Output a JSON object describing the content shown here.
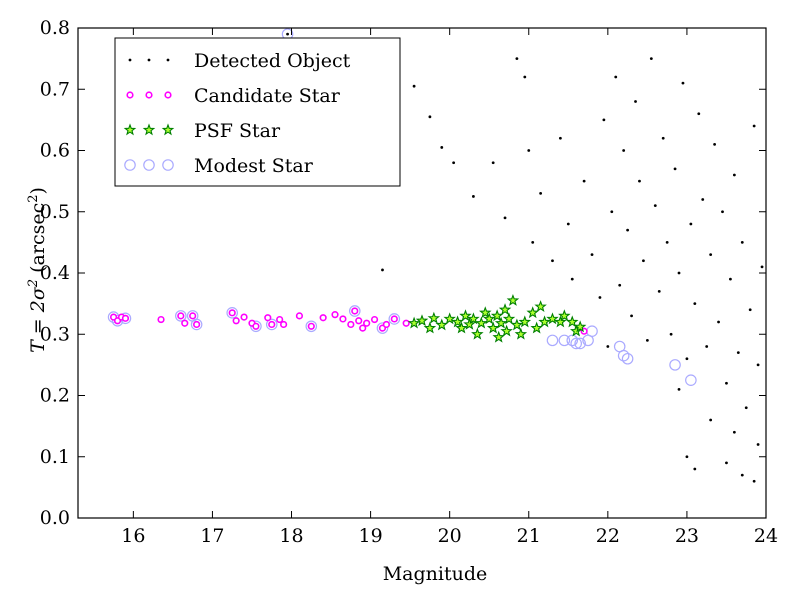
{
  "chart_data": {
    "type": "scatter",
    "xlabel": "Magnitude",
    "ylabel": {
      "pre": "T = 2σ",
      "sup1": "2",
      "mid": " (arcsec",
      "sup2": "2",
      "post": ")"
    },
    "xlim": [
      15.3,
      24
    ],
    "ylim": [
      0.0,
      0.8
    ],
    "xticks": [
      16,
      17,
      18,
      19,
      20,
      21,
      22,
      23,
      24
    ],
    "yticks": [
      0.0,
      0.1,
      0.2,
      0.3,
      0.4,
      0.5,
      0.6,
      0.7,
      0.8
    ],
    "xtick_labels": [
      "16",
      "17",
      "18",
      "19",
      "20",
      "21",
      "22",
      "23",
      "24"
    ],
    "ytick_labels": [
      "0.0",
      "0.1",
      "0.2",
      "0.3",
      "0.4",
      "0.5",
      "0.6",
      "0.7",
      "0.8"
    ],
    "grid": false,
    "legend_position": "top-left",
    "series": [
      {
        "name": "Detected Object",
        "marker": "dot",
        "color": "#000000",
        "points": [
          [
            17.95,
            0.79
          ],
          [
            19.15,
            0.405
          ],
          [
            19.55,
            0.705
          ],
          [
            19.75,
            0.655
          ],
          [
            19.9,
            0.605
          ],
          [
            20.05,
            0.58
          ],
          [
            20.3,
            0.525
          ],
          [
            20.55,
            0.58
          ],
          [
            20.7,
            0.49
          ],
          [
            20.85,
            0.75
          ],
          [
            20.95,
            0.72
          ],
          [
            21.0,
            0.6
          ],
          [
            21.05,
            0.45
          ],
          [
            21.15,
            0.53
          ],
          [
            21.3,
            0.42
          ],
          [
            21.4,
            0.62
          ],
          [
            21.5,
            0.48
          ],
          [
            21.55,
            0.39
          ],
          [
            21.6,
            0.31
          ],
          [
            21.7,
            0.55
          ],
          [
            21.8,
            0.43
          ],
          [
            21.9,
            0.36
          ],
          [
            21.95,
            0.65
          ],
          [
            22.0,
            0.28
          ],
          [
            22.05,
            0.5
          ],
          [
            22.1,
            0.72
          ],
          [
            22.15,
            0.38
          ],
          [
            22.2,
            0.6
          ],
          [
            22.25,
            0.47
          ],
          [
            22.3,
            0.33
          ],
          [
            22.35,
            0.68
          ],
          [
            22.4,
            0.55
          ],
          [
            22.45,
            0.42
          ],
          [
            22.5,
            0.29
          ],
          [
            22.55,
            0.75
          ],
          [
            22.6,
            0.51
          ],
          [
            22.65,
            0.37
          ],
          [
            22.7,
            0.62
          ],
          [
            22.75,
            0.45
          ],
          [
            22.8,
            0.3
          ],
          [
            22.85,
            0.57
          ],
          [
            22.9,
            0.4
          ],
          [
            22.95,
            0.71
          ],
          [
            23.0,
            0.26
          ],
          [
            23.05,
            0.48
          ],
          [
            23.1,
            0.35
          ],
          [
            23.15,
            0.66
          ],
          [
            23.2,
            0.52
          ],
          [
            23.25,
            0.28
          ],
          [
            23.3,
            0.43
          ],
          [
            23.35,
            0.61
          ],
          [
            23.4,
            0.32
          ],
          [
            23.45,
            0.5
          ],
          [
            23.5,
            0.22
          ],
          [
            23.55,
            0.39
          ],
          [
            23.6,
            0.56
          ],
          [
            23.65,
            0.27
          ],
          [
            23.7,
            0.45
          ],
          [
            23.75,
            0.18
          ],
          [
            23.8,
            0.34
          ],
          [
            23.85,
            0.64
          ],
          [
            23.9,
            0.25
          ],
          [
            23.95,
            0.41
          ],
          [
            23.0,
            0.1
          ],
          [
            23.1,
            0.08
          ],
          [
            23.5,
            0.09
          ],
          [
            23.7,
            0.07
          ],
          [
            23.85,
            0.06
          ],
          [
            22.9,
            0.21
          ],
          [
            23.3,
            0.16
          ],
          [
            23.6,
            0.14
          ],
          [
            23.9,
            0.12
          ]
        ]
      },
      {
        "name": "Candidate Star",
        "marker": "circle",
        "color": "#ff00ff",
        "points": [
          [
            15.75,
            0.328
          ],
          [
            15.8,
            0.322
          ],
          [
            15.85,
            0.328
          ],
          [
            15.9,
            0.326
          ],
          [
            16.35,
            0.324
          ],
          [
            16.6,
            0.33
          ],
          [
            16.65,
            0.318
          ],
          [
            16.75,
            0.33
          ],
          [
            16.8,
            0.316
          ],
          [
            17.25,
            0.335
          ],
          [
            17.3,
            0.322
          ],
          [
            17.4,
            0.328
          ],
          [
            17.5,
            0.318
          ],
          [
            17.55,
            0.313
          ],
          [
            17.7,
            0.327
          ],
          [
            17.75,
            0.316
          ],
          [
            17.85,
            0.324
          ],
          [
            17.9,
            0.316
          ],
          [
            18.1,
            0.33
          ],
          [
            18.25,
            0.313
          ],
          [
            18.4,
            0.327
          ],
          [
            18.55,
            0.332
          ],
          [
            18.65,
            0.325
          ],
          [
            18.75,
            0.316
          ],
          [
            18.8,
            0.338
          ],
          [
            18.85,
            0.322
          ],
          [
            18.9,
            0.31
          ],
          [
            18.95,
            0.318
          ],
          [
            19.05,
            0.324
          ],
          [
            19.15,
            0.31
          ],
          [
            19.2,
            0.316
          ],
          [
            19.3,
            0.325
          ],
          [
            19.45,
            0.318
          ],
          [
            21.7,
            0.305
          ]
        ]
      },
      {
        "name": "PSF Star",
        "marker": "star",
        "color": "#008000",
        "points": [
          [
            19.55,
            0.318
          ],
          [
            19.65,
            0.322
          ],
          [
            19.75,
            0.31
          ],
          [
            19.8,
            0.326
          ],
          [
            19.9,
            0.315
          ],
          [
            20.0,
            0.325
          ],
          [
            20.1,
            0.32
          ],
          [
            20.15,
            0.31
          ],
          [
            20.2,
            0.33
          ],
          [
            20.25,
            0.316
          ],
          [
            20.3,
            0.325
          ],
          [
            20.35,
            0.3
          ],
          [
            20.4,
            0.318
          ],
          [
            20.45,
            0.335
          ],
          [
            20.5,
            0.325
          ],
          [
            20.55,
            0.31
          ],
          [
            20.6,
            0.33
          ],
          [
            20.62,
            0.295
          ],
          [
            20.65,
            0.318
          ],
          [
            20.7,
            0.34
          ],
          [
            20.72,
            0.305
          ],
          [
            20.75,
            0.325
          ],
          [
            20.8,
            0.355
          ],
          [
            20.85,
            0.315
          ],
          [
            20.9,
            0.3
          ],
          [
            20.95,
            0.32
          ],
          [
            21.05,
            0.335
          ],
          [
            21.1,
            0.31
          ],
          [
            21.15,
            0.345
          ],
          [
            21.2,
            0.32
          ],
          [
            21.3,
            0.325
          ],
          [
            21.4,
            0.32
          ],
          [
            21.45,
            0.33
          ],
          [
            21.55,
            0.32
          ],
          [
            21.6,
            0.305
          ],
          [
            21.65,
            0.312
          ]
        ]
      },
      {
        "name": "Modest Star",
        "marker": "open-circle",
        "color": "#aaaaff",
        "points": [
          [
            15.75,
            0.328
          ],
          [
            15.8,
            0.322
          ],
          [
            15.9,
            0.326
          ],
          [
            16.6,
            0.33
          ],
          [
            16.75,
            0.33
          ],
          [
            16.8,
            0.316
          ],
          [
            17.25,
            0.335
          ],
          [
            17.55,
            0.313
          ],
          [
            17.75,
            0.316
          ],
          [
            18.25,
            0.313
          ],
          [
            18.8,
            0.338
          ],
          [
            19.15,
            0.31
          ],
          [
            19.3,
            0.325
          ],
          [
            21.3,
            0.29
          ],
          [
            21.45,
            0.29
          ],
          [
            21.55,
            0.29
          ],
          [
            21.6,
            0.285
          ],
          [
            21.65,
            0.285
          ],
          [
            21.75,
            0.29
          ],
          [
            21.8,
            0.305
          ],
          [
            22.15,
            0.28
          ],
          [
            22.2,
            0.265
          ],
          [
            22.25,
            0.26
          ],
          [
            22.85,
            0.25
          ],
          [
            23.05,
            0.225
          ],
          [
            17.95,
            0.79
          ]
        ]
      }
    ]
  }
}
